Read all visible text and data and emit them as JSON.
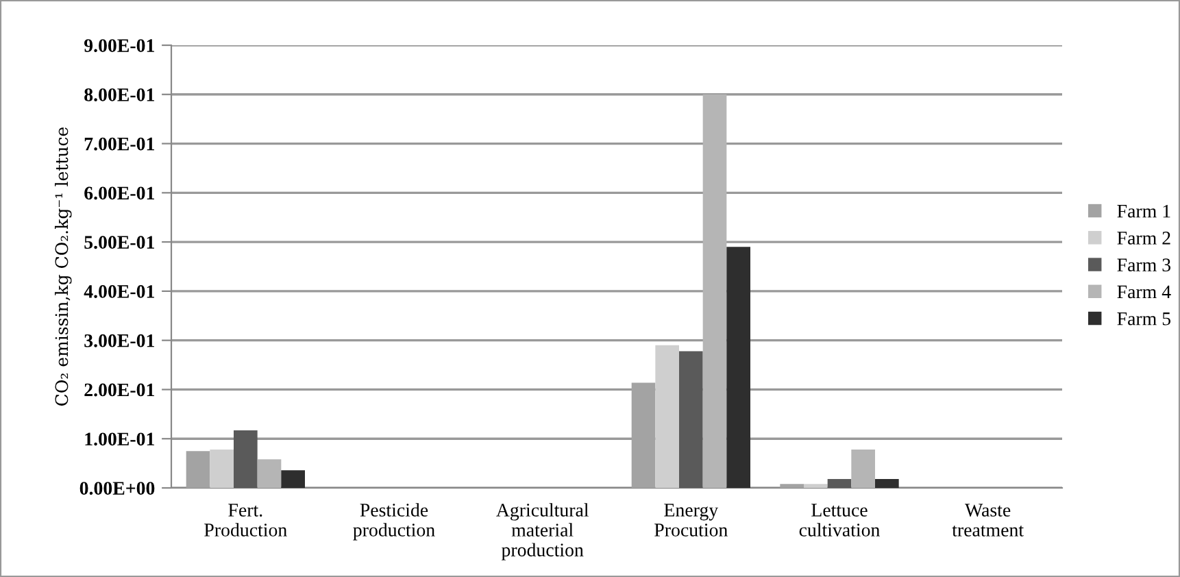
{
  "chart_data": {
    "type": "bar",
    "ylabel": "CO₂ emissin,kg CO₂.kg⁻¹ lettuce",
    "categories": [
      "Fert.\nProduction",
      "Pesticide\nproduction",
      "Agricultural\nmaterial\nproduction",
      "Energy\nProcution",
      "Lettuce\ncultivation",
      "Waste\ntreatment"
    ],
    "series": [
      {
        "name": "Farm 1",
        "color": "#a3a3a3",
        "values": [
          0.075,
          0,
          null,
          0.214,
          0.008,
          0
        ]
      },
      {
        "name": "Farm 2",
        "color": "#cfcfcf",
        "values": [
          0.078,
          0,
          null,
          0.29,
          0.008,
          0
        ]
      },
      {
        "name": "Farm 3",
        "color": "#5a5a5a",
        "values": [
          0.117,
          0,
          null,
          0.278,
          0.018,
          0
        ]
      },
      {
        "name": "Farm 4",
        "color": "#b5b5b5",
        "values": [
          0.058,
          0,
          null,
          0.8,
          0.078,
          0
        ]
      },
      {
        "name": "Farm 5",
        "color": "#2e2e2e",
        "values": [
          0.036,
          0,
          null,
          0.49,
          0.018,
          0
        ]
      }
    ],
    "ylim": [
      0,
      0.9
    ],
    "yticks": [
      {
        "value": 0,
        "label": "0.00E+00"
      },
      {
        "value": 0.1,
        "label": "1.00E-01"
      },
      {
        "value": 0.2,
        "label": "2.00E-01"
      },
      {
        "value": 0.3,
        "label": "3.00E-01"
      },
      {
        "value": 0.4,
        "label": "4.00E-01"
      },
      {
        "value": 0.5,
        "label": "5.00E-01"
      },
      {
        "value": 0.6,
        "label": "6.00E-01"
      },
      {
        "value": 0.7,
        "label": "7.00E-01"
      },
      {
        "value": 0.8,
        "label": "8.00E-01"
      },
      {
        "value": 0.9,
        "label": "9.00E-01"
      }
    ],
    "grid": "y",
    "legend": "right"
  }
}
